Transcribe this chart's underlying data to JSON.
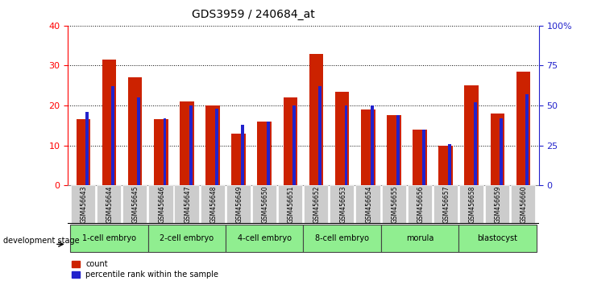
{
  "title": "GDS3959 / 240684_at",
  "samples": [
    "GSM456643",
    "GSM456644",
    "GSM456645",
    "GSM456646",
    "GSM456647",
    "GSM456648",
    "GSM456649",
    "GSM456650",
    "GSM456651",
    "GSM456652",
    "GSM456653",
    "GSM456654",
    "GSM456655",
    "GSM456656",
    "GSM456657",
    "GSM456658",
    "GSM456659",
    "GSM456660"
  ],
  "count_values": [
    16.5,
    31.5,
    27.0,
    16.5,
    21.0,
    20.0,
    13.0,
    16.0,
    22.0,
    33.0,
    23.5,
    19.0,
    17.5,
    14.0,
    10.0,
    25.0,
    18.0,
    28.5
  ],
  "percentile_values": [
    46,
    62,
    55,
    42,
    50,
    48,
    38,
    40,
    50,
    62,
    50,
    50,
    44,
    35,
    26,
    52,
    42,
    57
  ],
  "stages": [
    {
      "label": "1-cell embryo",
      "start": 0,
      "end": 3
    },
    {
      "label": "2-cell embryo",
      "start": 3,
      "end": 6
    },
    {
      "label": "4-cell embryo",
      "start": 6,
      "end": 9
    },
    {
      "label": "8-cell embryo",
      "start": 9,
      "end": 12
    },
    {
      "label": "morula",
      "start": 12,
      "end": 15
    },
    {
      "label": "blastocyst",
      "start": 15,
      "end": 18
    }
  ],
  "bar_color": "#cc2200",
  "percentile_color": "#2222cc",
  "left_ylim": [
    0,
    40
  ],
  "right_ylim": [
    0,
    100
  ],
  "left_yticks": [
    0,
    10,
    20,
    30,
    40
  ],
  "right_yticks": [
    0,
    25,
    50,
    75,
    100
  ],
  "right_yticklabels": [
    "0",
    "25",
    "50",
    "75",
    "100%"
  ],
  "tick_label_bg": "#cccccc",
  "stage_color_even": "#90ee90",
  "stage_color_odd": "#aaf0aa",
  "development_stage_text": "development stage"
}
